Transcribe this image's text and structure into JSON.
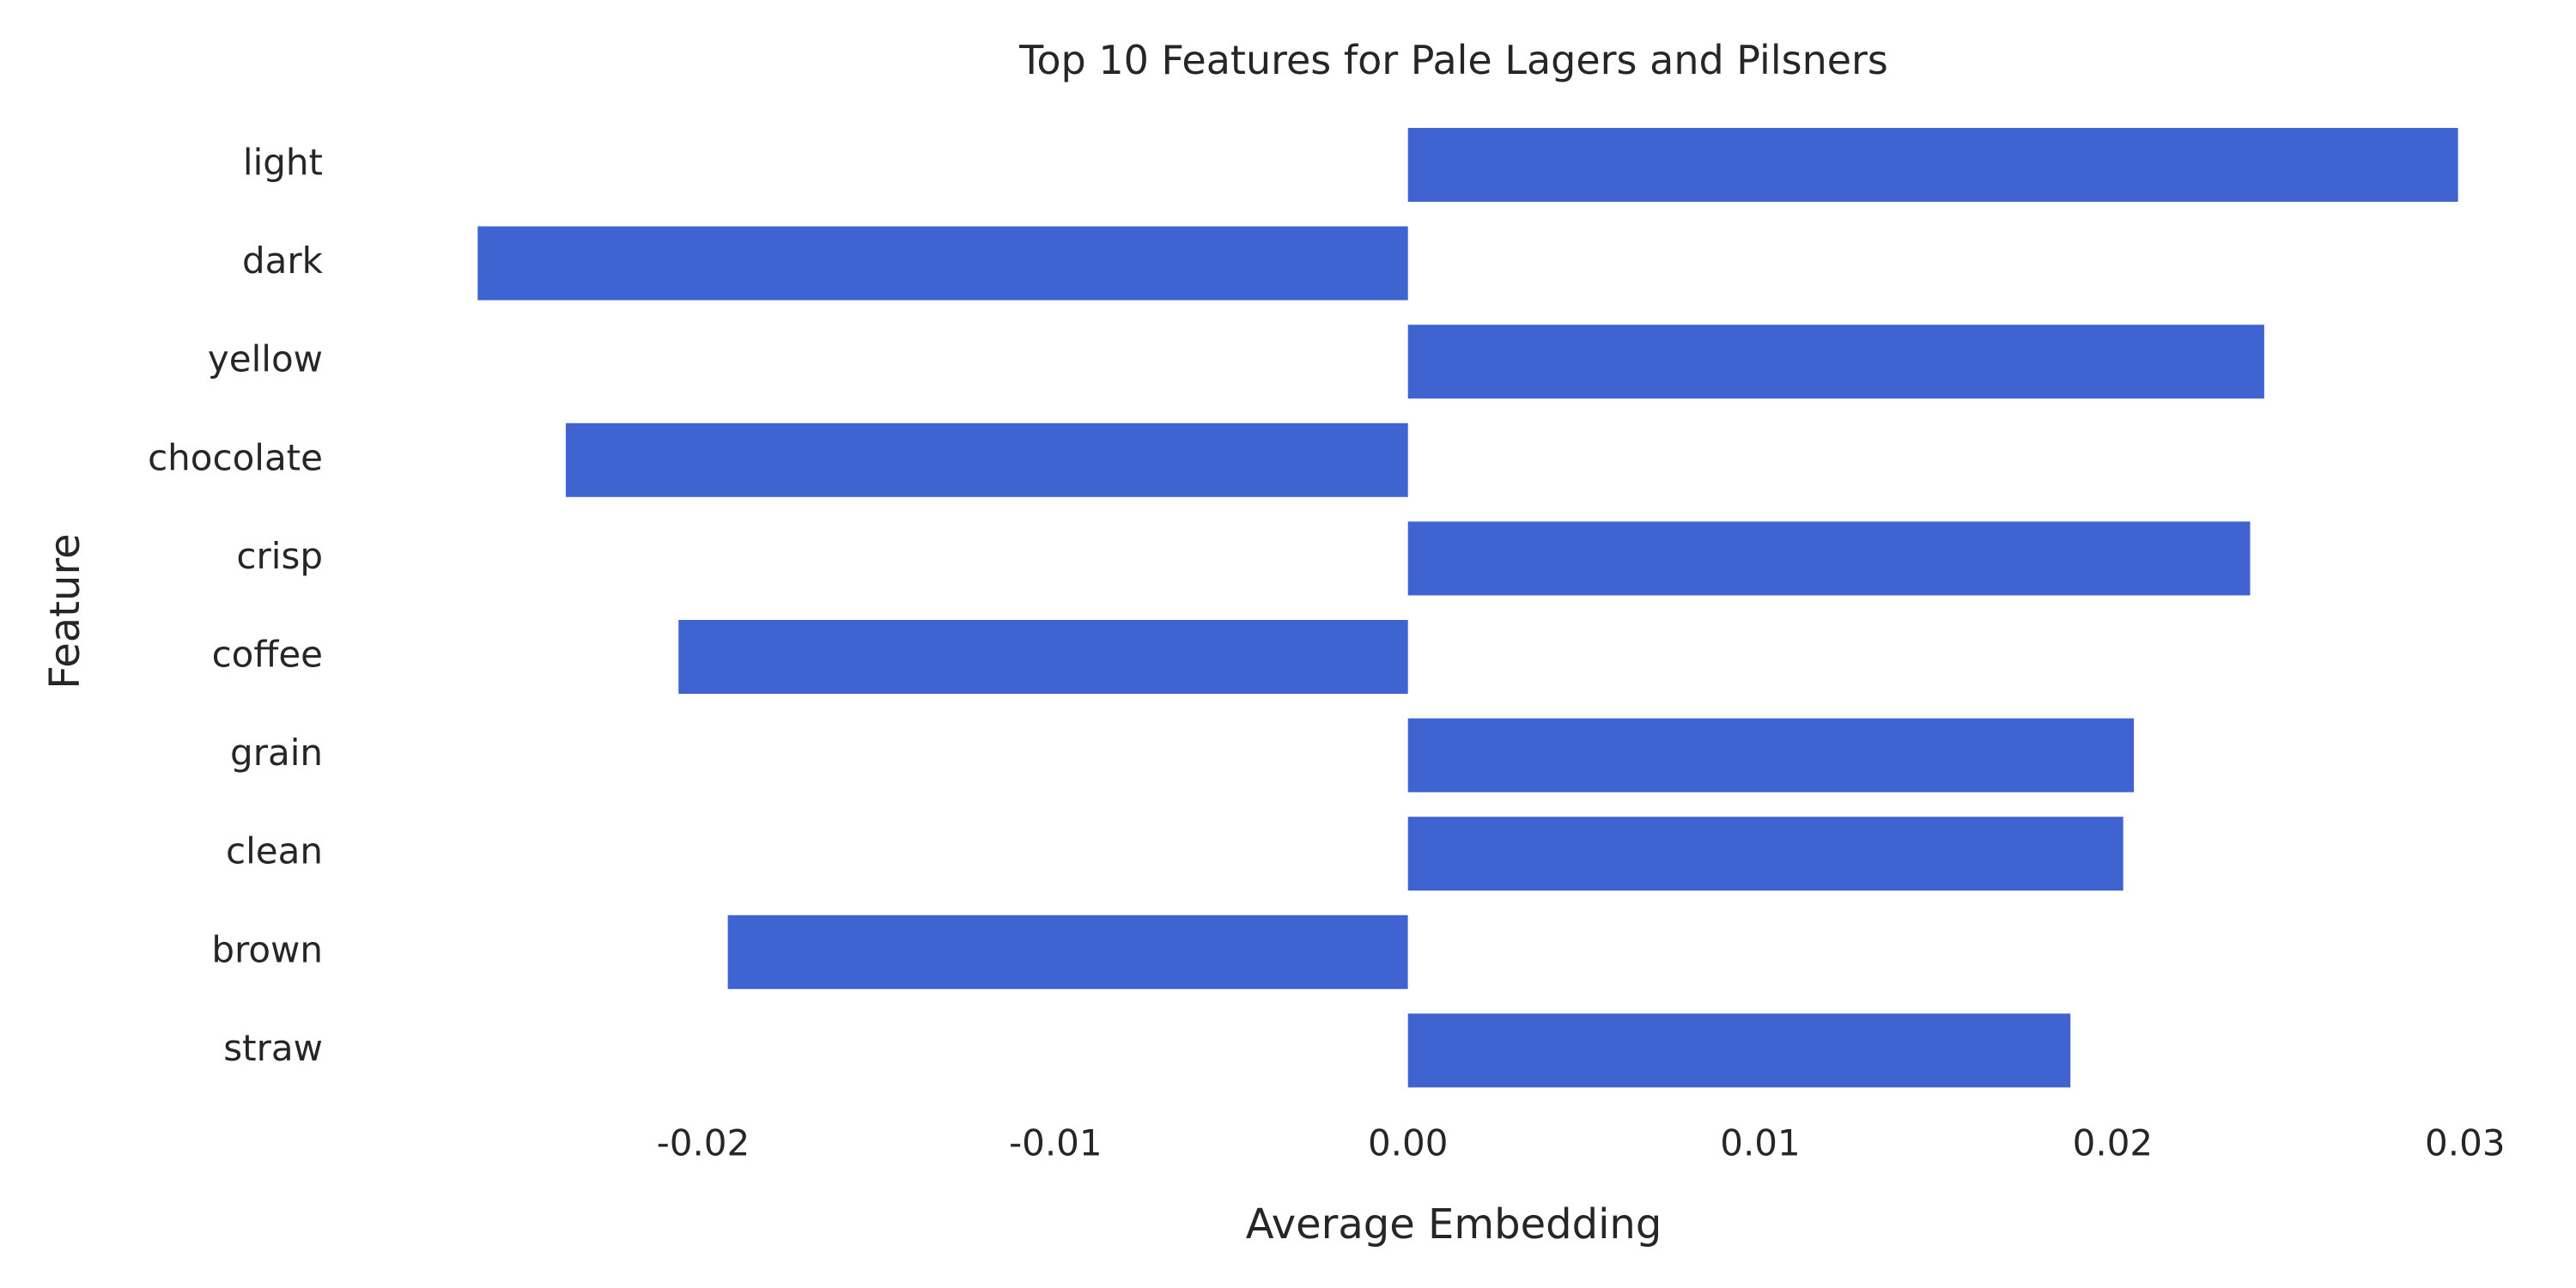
{
  "chart_data": {
    "type": "bar",
    "orientation": "horizontal",
    "title": "Top 10 Features for Pale Lagers and Pilsners",
    "xlabel": "Average Embedding",
    "ylabel": "Feature",
    "categories": [
      "light",
      "dark",
      "yellow",
      "chocolate",
      "crisp",
      "coffee",
      "grain",
      "clean",
      "brown",
      "straw"
    ],
    "values": [
      0.0298,
      -0.0264,
      0.0243,
      -0.0239,
      0.0239,
      -0.0207,
      0.0206,
      0.0203,
      -0.0193,
      0.0188
    ],
    "xticks": [
      "-0.02",
      "-0.01",
      "0.00",
      "0.01",
      "0.02",
      "0.03"
    ],
    "xtick_values": [
      -0.02,
      -0.01,
      0.0,
      0.01,
      0.02,
      0.03
    ],
    "xlim": [
      -0.0286,
      0.0312
    ],
    "grid": false,
    "legend": "none",
    "bar_color": "#3f63d1"
  }
}
